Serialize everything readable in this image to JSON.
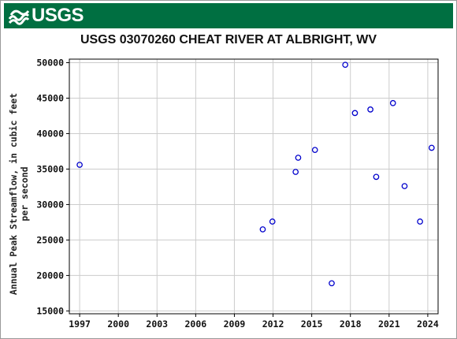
{
  "header": {
    "logo_text": "USGS",
    "banner_color": "#006f41"
  },
  "chart_data": {
    "type": "scatter",
    "title": "USGS 03070260 CHEAT RIVER AT ALBRIGHT, WV",
    "ylabel_lines": [
      "Annual Peak Streamflow, in cubic feet",
      "per second"
    ],
    "xlabel": "",
    "xlim": [
      1996.2,
      2024.8
    ],
    "ylim": [
      14600,
      50500
    ],
    "x_ticks": [
      1997,
      2000,
      2003,
      2006,
      2009,
      2012,
      2015,
      2018,
      2021,
      2024
    ],
    "y_ticks": [
      15000,
      20000,
      25000,
      30000,
      35000,
      40000,
      45000,
      50000
    ],
    "grid": true,
    "marker": "open-circle",
    "marker_color": "#0000cc",
    "points": [
      {
        "x": 1997.0,
        "y": 35600
      },
      {
        "x": 2011.2,
        "y": 26500
      },
      {
        "x": 2011.95,
        "y": 27600
      },
      {
        "x": 2013.75,
        "y": 34600
      },
      {
        "x": 2013.95,
        "y": 36600
      },
      {
        "x": 2015.25,
        "y": 37700
      },
      {
        "x": 2016.55,
        "y": 18900
      },
      {
        "x": 2017.6,
        "y": 49700
      },
      {
        "x": 2018.35,
        "y": 42900
      },
      {
        "x": 2019.55,
        "y": 43400
      },
      {
        "x": 2020.0,
        "y": 33900
      },
      {
        "x": 2021.3,
        "y": 44300
      },
      {
        "x": 2022.2,
        "y": 32600
      },
      {
        "x": 2023.4,
        "y": 27600
      },
      {
        "x": 2024.3,
        "y": 38000
      }
    ]
  }
}
